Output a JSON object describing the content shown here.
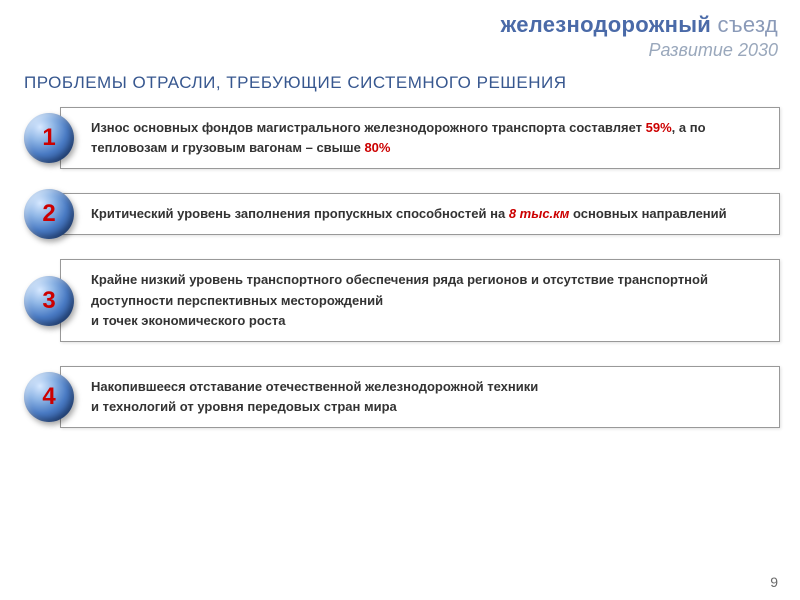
{
  "header": {
    "bold": "железнодорожный",
    "light": " съезд",
    "subtitle": "Развитие 2030"
  },
  "section_title": "ПРОБЛЕМЫ ОТРАСЛИ, ТРЕБУЮЩИЕ СИСТЕМНОГО РЕШЕНИЯ",
  "items": [
    {
      "num": "1",
      "pre1": "Износ основных фондов магистрального железнодорожного транспорта составляет ",
      "red1": "59%",
      "mid1": ", а по тепловозам и грузовым вагонам – свыше ",
      "red2": "80%",
      "post1": ""
    },
    {
      "num": "2",
      "pre1": "Критический уровень заполнения пропускных способностей на ",
      "red1": "8 тыс.км",
      "post1": " основных направлений"
    },
    {
      "num": "3",
      "text": "Крайне низкий  уровень транспортного обеспечения ряда регионов и отсутствие транспортной доступности перспективных месторождений\nи точек экономического роста"
    },
    {
      "num": "4",
      "text": "Накопившееся отставание отечественной железнодорожной техники\nи технологий от уровня передовых стран мира"
    }
  ],
  "page_number": "9",
  "colors": {
    "title_color": "#37578f",
    "accent_red": "#cc0000",
    "header_bold": "#4a6aa8",
    "header_light": "#8a9ab8",
    "subtitle_color": "#9aa8bc",
    "box_border": "#999999",
    "background": "#ffffff"
  },
  "typography": {
    "base_font": "Verdana",
    "title_size_pt": 13,
    "body_size_pt": 10,
    "header_size_pt": 17,
    "bullet_num_size_pt": 18
  }
}
